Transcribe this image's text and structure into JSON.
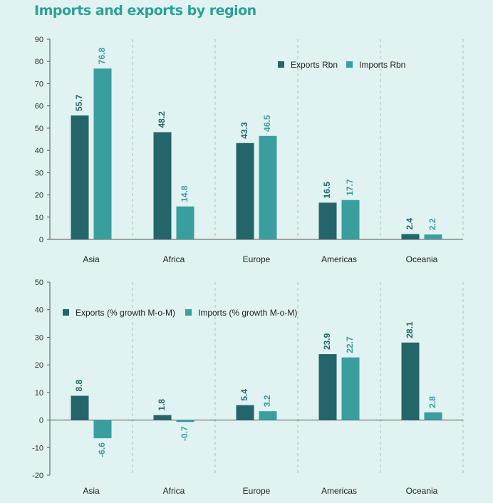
{
  "title": "Imports and exports by region",
  "colors": {
    "exports": "#24656a",
    "imports": "#3a9e9f",
    "background": "#e0f2f1"
  },
  "chart_data": [
    {
      "type": "bar",
      "categories": [
        "Asia",
        "Africa",
        "Europe",
        "Americas",
        "Oceania"
      ],
      "series": [
        {
          "name": "Exports Rbn",
          "values": [
            55.7,
            48.2,
            43.3,
            16.5,
            2.4
          ],
          "labels": [
            "55.7",
            "48.2",
            "43.3",
            "16.5",
            "2.4"
          ]
        },
        {
          "name": "Imports Rbn",
          "values": [
            76.8,
            14.8,
            46.5,
            17.7,
            2.2
          ],
          "labels": [
            "76.8",
            "14.8",
            "46.5",
            "17.7",
            "2.2"
          ]
        }
      ],
      "ylim": [
        0,
        90
      ],
      "yticks": [
        0,
        10,
        20,
        30,
        40,
        50,
        60,
        70,
        80,
        90
      ],
      "legend": "top-right",
      "grid": "vertical dashed separators"
    },
    {
      "type": "bar",
      "categories": [
        "Asia",
        "Africa",
        "Europe",
        "Americas",
        "Oceania"
      ],
      "series": [
        {
          "name": "Exports (% growth M-o-M)",
          "values": [
            8.8,
            1.8,
            5.4,
            23.9,
            28.1
          ],
          "labels": [
            "8.8",
            "1.8",
            "5.4",
            "23.9",
            "28.1"
          ]
        },
        {
          "name": "Imports (% growth M-o-M)",
          "values": [
            -6.6,
            -0.7,
            3.2,
            22.7,
            2.8
          ],
          "labels": [
            "-6.6",
            "-0.7",
            "3.2",
            "22.7",
            "2.8"
          ]
        }
      ],
      "ylim": [
        -20,
        50
      ],
      "yticks": [
        -20,
        -10,
        0,
        10,
        20,
        30,
        40,
        50
      ],
      "legend": "top-left",
      "grid": "vertical dashed separators"
    }
  ]
}
